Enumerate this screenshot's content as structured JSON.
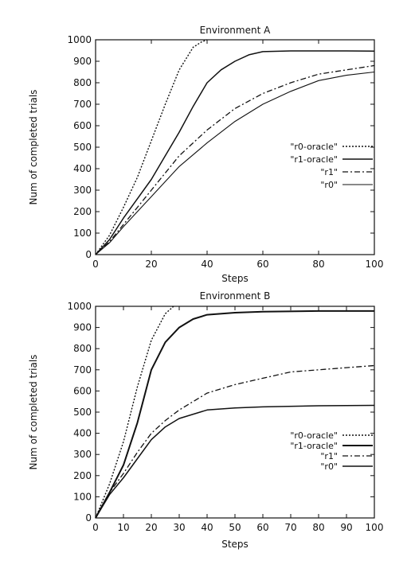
{
  "chart_data": [
    {
      "type": "line",
      "title": "Environment A",
      "xlabel": "Steps",
      "ylabel": "Num of completed trials",
      "xlim": [
        0,
        100
      ],
      "ylim": [
        0,
        1000
      ],
      "xticks": [
        0,
        20,
        40,
        60,
        80,
        100
      ],
      "yticks": [
        0,
        100,
        200,
        300,
        400,
        500,
        600,
        700,
        800,
        900,
        1000
      ],
      "grid": false,
      "legend_position": "right-middle",
      "series": [
        {
          "name": "\"r0-oracle\"",
          "style": "dotted",
          "x": [
            0,
            5,
            10,
            15,
            20,
            25,
            30,
            35,
            38,
            40
          ],
          "y": [
            0,
            90,
            220,
            360,
            530,
            700,
            860,
            965,
            990,
            1000
          ]
        },
        {
          "name": "\"r1-oracle\"",
          "style": "solid",
          "x": [
            0,
            5,
            10,
            15,
            20,
            25,
            30,
            35,
            40,
            45,
            50,
            55,
            60,
            70,
            80,
            90,
            100
          ],
          "y": [
            0,
            70,
            170,
            260,
            350,
            460,
            570,
            690,
            800,
            860,
            900,
            930,
            945,
            948,
            948,
            948,
            947
          ]
        },
        {
          "name": "\"r1\"",
          "style": "dashdot",
          "x": [
            0,
            5,
            10,
            20,
            30,
            40,
            50,
            60,
            70,
            80,
            90,
            100
          ],
          "y": [
            0,
            60,
            140,
            300,
            460,
            580,
            680,
            750,
            800,
            840,
            860,
            880
          ]
        },
        {
          "name": "\"r0\"",
          "style": "solid-thin",
          "x": [
            0,
            5,
            10,
            20,
            30,
            40,
            50,
            60,
            70,
            80,
            90,
            100
          ],
          "y": [
            0,
            55,
            130,
            270,
            410,
            520,
            620,
            700,
            760,
            810,
            835,
            850
          ]
        }
      ]
    },
    {
      "type": "line",
      "title": "Environment B",
      "xlabel": "Steps",
      "ylabel": "Num of completed trials",
      "xlim": [
        0,
        100
      ],
      "ylim": [
        0,
        1000
      ],
      "xticks": [
        0,
        10,
        20,
        30,
        40,
        50,
        60,
        70,
        80,
        90,
        100
      ],
      "yticks": [
        0,
        100,
        200,
        300,
        400,
        500,
        600,
        700,
        800,
        900,
        1000
      ],
      "grid": false,
      "legend_position": "right-lower",
      "series": [
        {
          "name": "\"r0-oracle\"",
          "style": "dotted",
          "x": [
            0,
            5,
            10,
            15,
            20,
            25,
            28
          ],
          "y": [
            0,
            160,
            360,
            620,
            840,
            965,
            1000
          ]
        },
        {
          "name": "\"r1-oracle\"",
          "style": "solid-thick",
          "x": [
            0,
            5,
            10,
            15,
            20,
            25,
            30,
            35,
            40,
            50,
            60,
            80,
            100
          ],
          "y": [
            0,
            120,
            250,
            450,
            700,
            830,
            900,
            940,
            960,
            970,
            975,
            978,
            978
          ]
        },
        {
          "name": "\"r1\"",
          "style": "dashdot",
          "x": [
            0,
            5,
            10,
            15,
            20,
            25,
            30,
            40,
            50,
            60,
            70,
            80,
            90,
            100
          ],
          "y": [
            0,
            120,
            210,
            310,
            400,
            460,
            510,
            590,
            630,
            660,
            690,
            700,
            710,
            720
          ]
        },
        {
          "name": "\"r0\"",
          "style": "solid",
          "x": [
            0,
            5,
            10,
            15,
            20,
            25,
            30,
            40,
            50,
            60,
            80,
            100
          ],
          "y": [
            0,
            110,
            190,
            280,
            370,
            430,
            470,
            510,
            520,
            525,
            530,
            532
          ]
        }
      ]
    }
  ]
}
